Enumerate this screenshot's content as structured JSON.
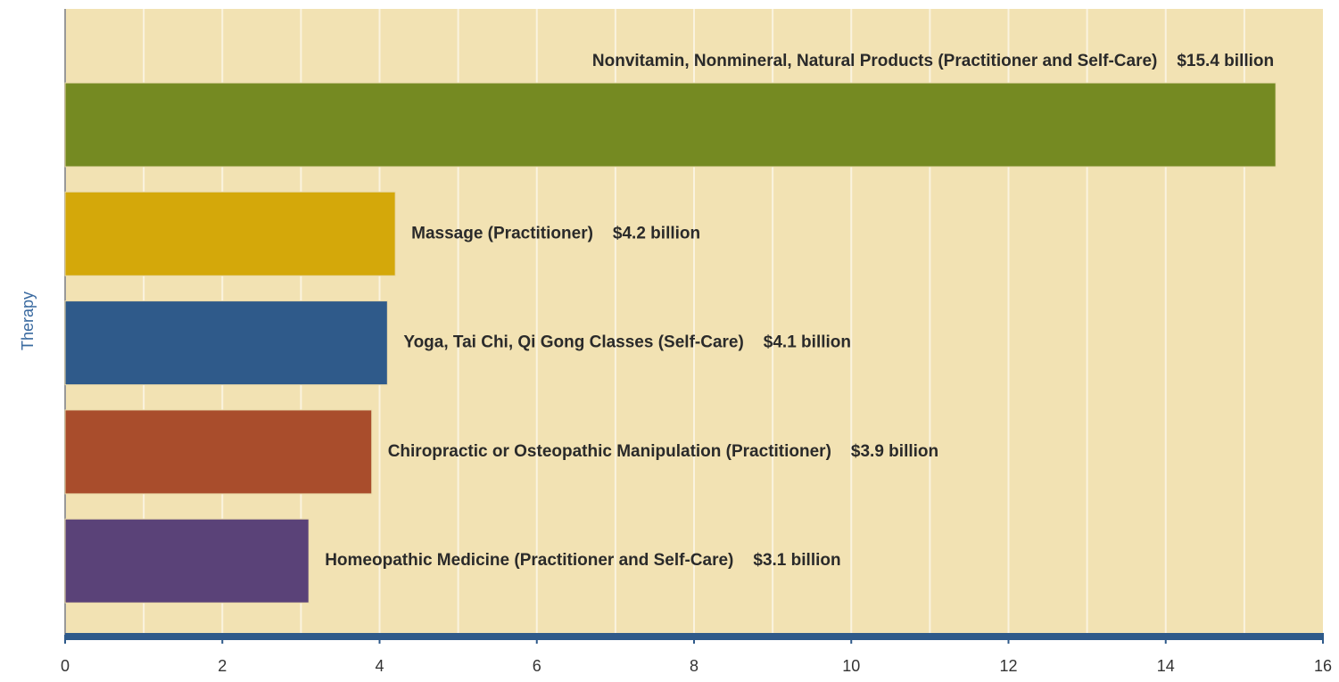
{
  "chart_data": {
    "type": "hbar",
    "y_label": "Therapy",
    "categories": [
      "Nonvitamin, Nonmineral, Natural Products (Practitioner and Self-Care)",
      "Massage (Practitioner)",
      "Yoga, Tai Chi, Qi Gong Classes (Self-Care)",
      "Chiropractic or Osteopathic Manipulation (Practitioner)",
      "Homeopathic Medicine (Practitioner and Self-Care)"
    ],
    "values": [
      15.4,
      4.2,
      4.1,
      3.9,
      3.1
    ],
    "value_labels": [
      "$15.4 billion",
      "$4.2 billion",
      "$4.1 billion",
      "$3.9 billion",
      "$3.1 billion"
    ],
    "colors": [
      "#758a22",
      "#d4a80a",
      "#2f5a8a",
      "#a94d2c",
      "#5a4278"
    ],
    "xlim": [
      0,
      16
    ],
    "xticks": [
      0,
      2,
      4,
      6,
      8,
      10,
      12,
      14,
      16
    ],
    "minor_xticks": [
      1,
      3,
      5,
      7,
      9,
      11,
      13,
      15
    ],
    "grid": true
  }
}
